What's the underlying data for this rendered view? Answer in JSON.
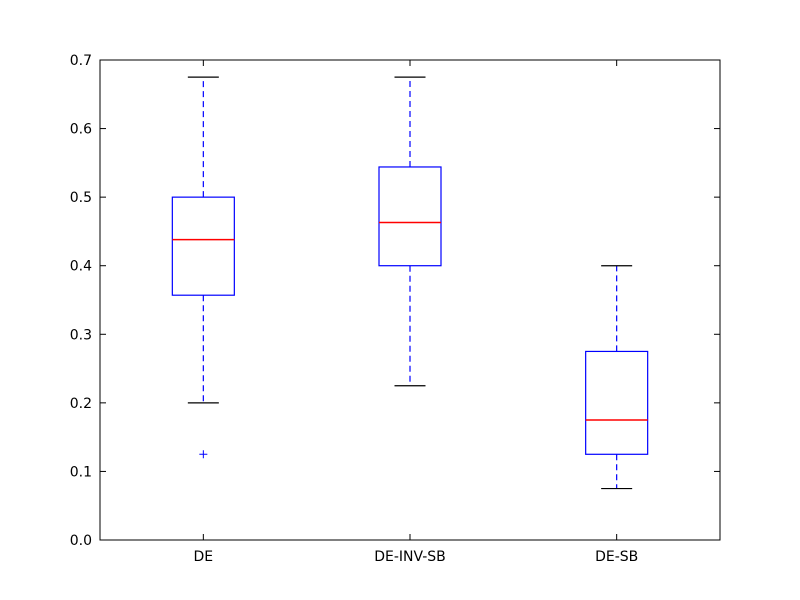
{
  "chart_data": {
    "type": "box",
    "categories": [
      "DE",
      "DE-INV-SB",
      "DE-SB"
    ],
    "yticks": [
      "0.0",
      "0.1",
      "0.2",
      "0.3",
      "0.4",
      "0.5",
      "0.6",
      "0.7"
    ],
    "ylim": [
      0.0,
      0.7
    ],
    "grid": false,
    "boxes": [
      {
        "category": "DE",
        "whisker_low": 0.2,
        "q1": 0.357,
        "median": 0.438,
        "q3": 0.5,
        "whisker_high": 0.675,
        "outliers": [
          0.125
        ]
      },
      {
        "category": "DE-INV-SB",
        "whisker_low": 0.225,
        "q1": 0.4,
        "median": 0.463,
        "q3": 0.544,
        "whisker_high": 0.675,
        "outliers": []
      },
      {
        "category": "DE-SB",
        "whisker_low": 0.075,
        "q1": 0.125,
        "median": 0.175,
        "q3": 0.275,
        "whisker_high": 0.4,
        "outliers": []
      }
    ],
    "colors": {
      "box": "#0000ff",
      "median": "#ff0000",
      "cap": "#000000",
      "outlier": "#0000ff"
    }
  }
}
